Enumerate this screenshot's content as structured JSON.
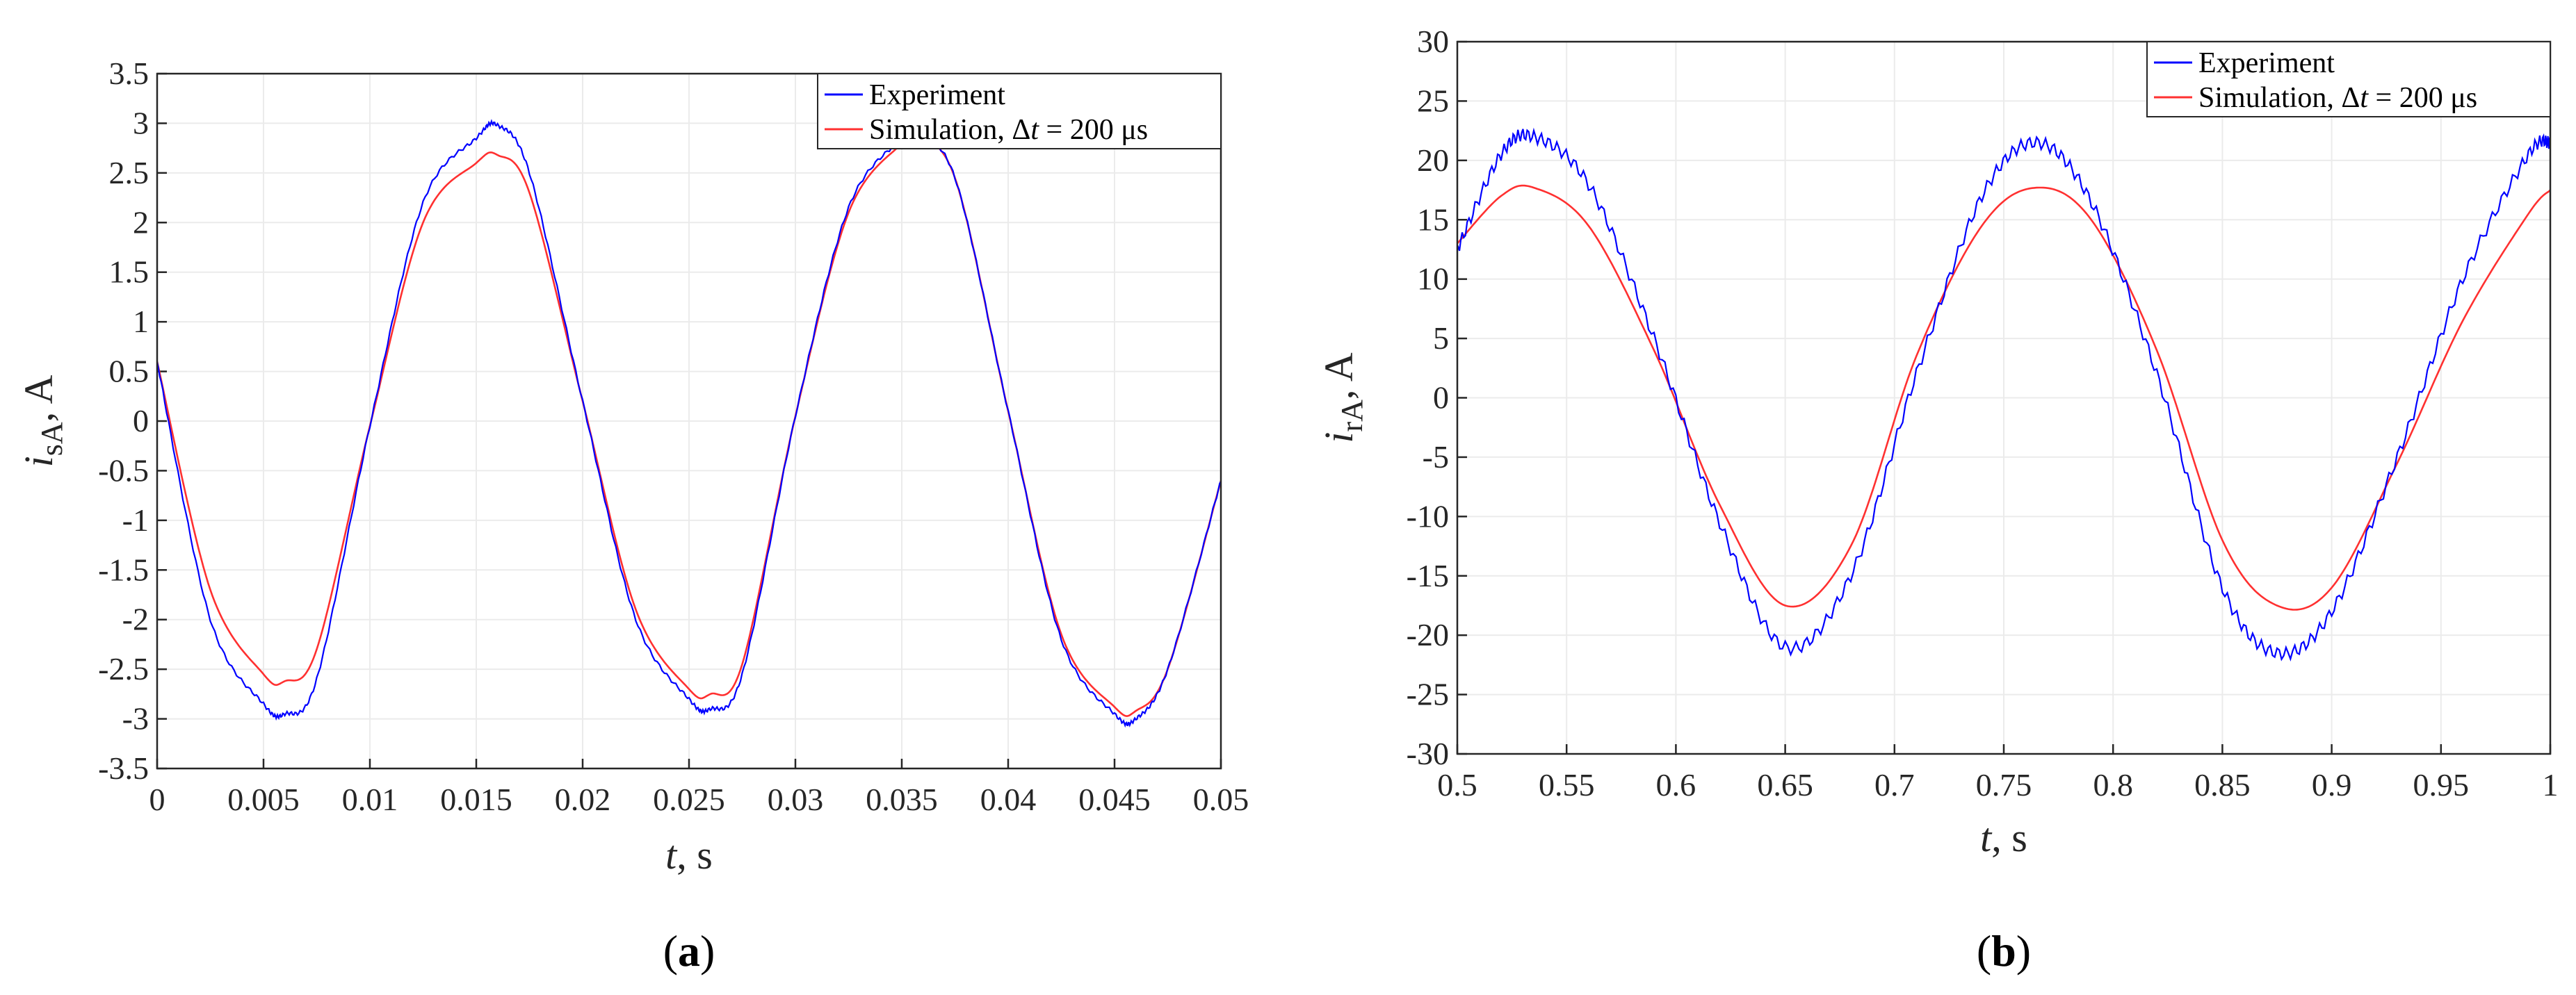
{
  "chart_data": [
    {
      "type": "line",
      "panel_label": "a",
      "xlabel": {
        "var": "t",
        "rest": ", s"
      },
      "ylabel": {
        "var": "i",
        "sub": "sA",
        "rest": ", A"
      },
      "xlim": [
        0,
        0.05
      ],
      "ylim": [
        -3.5,
        3.5
      ],
      "xticks": [
        "0",
        "0.005",
        "0.01",
        "0.015",
        "0.02",
        "0.025",
        "0.03",
        "0.035",
        "0.04",
        "0.045",
        "0.05"
      ],
      "yticks": [
        "-3.5",
        "-3",
        "-2.5",
        "-2",
        "-1.5",
        "-1",
        "-0.5",
        "0",
        "0.5",
        "1",
        "1.5",
        "2",
        "2.5",
        "3",
        "3.5"
      ],
      "grid": true,
      "legend_position": "top-right",
      "series": [
        {
          "name": "Experiment",
          "color": "#0000ff",
          "x": [
            0,
            0.0025,
            0.005,
            0.006,
            0.0075,
            0.01,
            0.0125,
            0.015,
            0.016,
            0.0175,
            0.02,
            0.0225,
            0.025,
            0.026,
            0.0275,
            0.03,
            0.0325,
            0.035,
            0.0355,
            0.0375,
            0.04,
            0.0425,
            0.045,
            0.046,
            0.0475,
            0.05
          ],
          "y": [
            0.6,
            -2.0,
            -2.85,
            -2.95,
            -2.6,
            -0.05,
            2.2,
            2.85,
            2.98,
            2.5,
            0.2,
            -2.0,
            -2.8,
            -2.9,
            -2.55,
            0.05,
            2.15,
            2.85,
            2.92,
            2.45,
            0.1,
            -2.2,
            -2.95,
            -3.0,
            -2.5,
            -0.6
          ]
        },
        {
          "name": "Simulation, Δt = 200 μs",
          "color": "#ff3030",
          "x": [
            0,
            0.0025,
            0.005,
            0.006,
            0.0075,
            0.01,
            0.0125,
            0.015,
            0.016,
            0.0175,
            0.02,
            0.0225,
            0.025,
            0.026,
            0.0275,
            0.03,
            0.0325,
            0.035,
            0.0355,
            0.0375,
            0.04,
            0.0425,
            0.045,
            0.046,
            0.0475,
            0.05
          ],
          "y": [
            0.6,
            -1.7,
            -2.55,
            -2.62,
            -2.3,
            -0.05,
            2.0,
            2.6,
            2.68,
            2.3,
            0.2,
            -1.9,
            -2.7,
            -2.75,
            -2.45,
            0.05,
            2.1,
            2.8,
            2.87,
            2.45,
            0.1,
            -2.15,
            -2.88,
            -2.92,
            -2.5,
            -0.6
          ]
        }
      ]
    },
    {
      "type": "line",
      "panel_label": "b",
      "xlabel": {
        "var": "t",
        "rest": ", s"
      },
      "ylabel": {
        "var": "i",
        "sub": "rA",
        "rest": ", A"
      },
      "xlim": [
        0.5,
        1
      ],
      "ylim": [
        -30,
        30
      ],
      "xticks": [
        "0.5",
        "0.55",
        "0.6",
        "0.65",
        "0.7",
        "0.75",
        "0.8",
        "0.85",
        "0.9",
        "0.95",
        "1"
      ],
      "yticks": [
        "-30",
        "-25",
        "-20",
        "-15",
        "-10",
        "-5",
        "0",
        "5",
        "10",
        "15",
        "20",
        "25",
        "30"
      ],
      "grid": true,
      "legend_position": "top-right",
      "series": [
        {
          "name": "Experiment",
          "color": "#0000ff",
          "x": [
            0.5,
            0.52,
            0.535,
            0.56,
            0.59,
            0.62,
            0.65,
            0.68,
            0.71,
            0.74,
            0.765,
            0.79,
            0.82,
            0.85,
            0.875,
            0.9,
            0.93,
            0.96,
            0.99,
            1.0
          ],
          "y": [
            12.5,
            20.5,
            22.0,
            18.0,
            5.0,
            -10.5,
            -21.0,
            -15.0,
            2.0,
            17.0,
            21.5,
            16.5,
            2.0,
            -16.0,
            -21.5,
            -18.0,
            -5.0,
            10.0,
            20.5,
            21.5
          ]
        },
        {
          "name": "Simulation, Δt = 200 μs",
          "color": "#ff3030",
          "x": [
            0.5,
            0.52,
            0.535,
            0.56,
            0.59,
            0.62,
            0.65,
            0.68,
            0.71,
            0.74,
            0.765,
            0.79,
            0.82,
            0.85,
            0.875,
            0.9,
            0.93,
            0.96,
            0.99,
            1.0
          ],
          "y": [
            13.0,
            17.0,
            17.7,
            14.5,
            4.0,
            -9.0,
            -17.5,
            -12.5,
            3.5,
            14.5,
            17.7,
            15.0,
            4.0,
            -12.0,
            -17.5,
            -16.0,
            -5.5,
            6.5,
            15.5,
            17.5
          ]
        }
      ]
    }
  ]
}
